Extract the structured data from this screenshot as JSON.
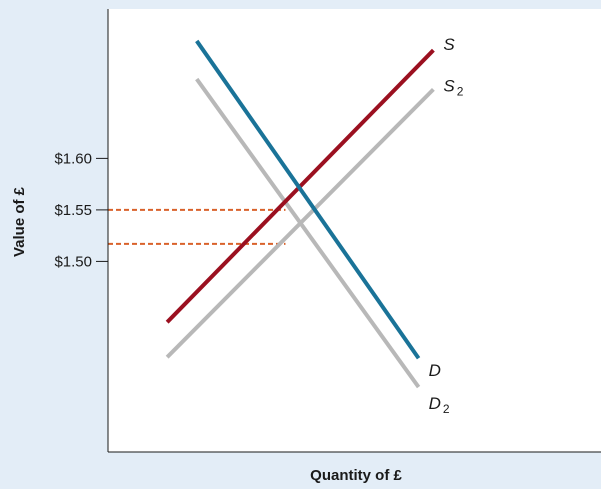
{
  "chart_data": {
    "type": "line",
    "title": "",
    "xlabel": "Quantity of £",
    "ylabel": "Value of £",
    "ylim": [
      1.315,
      1.745
    ],
    "xlim": [
      0,
      10
    ],
    "yticks": [
      {
        "value": 1.6,
        "label": "$1.60"
      },
      {
        "value": 1.55,
        "label": "$1.55"
      },
      {
        "value": 1.5,
        "label": "$1.50"
      }
    ],
    "grid": false,
    "series": [
      {
        "name": "S",
        "label_main": "S",
        "label_sub": "",
        "color": "#9b1020",
        "points": [
          [
            1.2,
            1.441
          ],
          [
            6.6,
            1.705
          ]
        ]
      },
      {
        "name": "S2",
        "label_main": "S",
        "label_sub": "2",
        "color": "#b8b8b8",
        "points": [
          [
            1.2,
            1.407
          ],
          [
            6.6,
            1.667
          ]
        ]
      },
      {
        "name": "D",
        "label_main": "D",
        "label_sub": "",
        "color": "#1a7398",
        "points": [
          [
            1.8,
            1.714
          ],
          [
            6.3,
            1.406
          ]
        ]
      },
      {
        "name": "D2",
        "label_main": "D",
        "label_sub": "2",
        "color": "#b8b8b8",
        "points": [
          [
            1.8,
            1.677
          ],
          [
            6.3,
            1.378
          ]
        ]
      }
    ],
    "reference_lines": [
      {
        "name": "rate-1",
        "y": 1.55,
        "x_end": 3.6,
        "color": "#d9622b"
      },
      {
        "name": "rate-2",
        "y": 1.517,
        "x_end": 3.6,
        "color": "#d9622b"
      }
    ]
  }
}
